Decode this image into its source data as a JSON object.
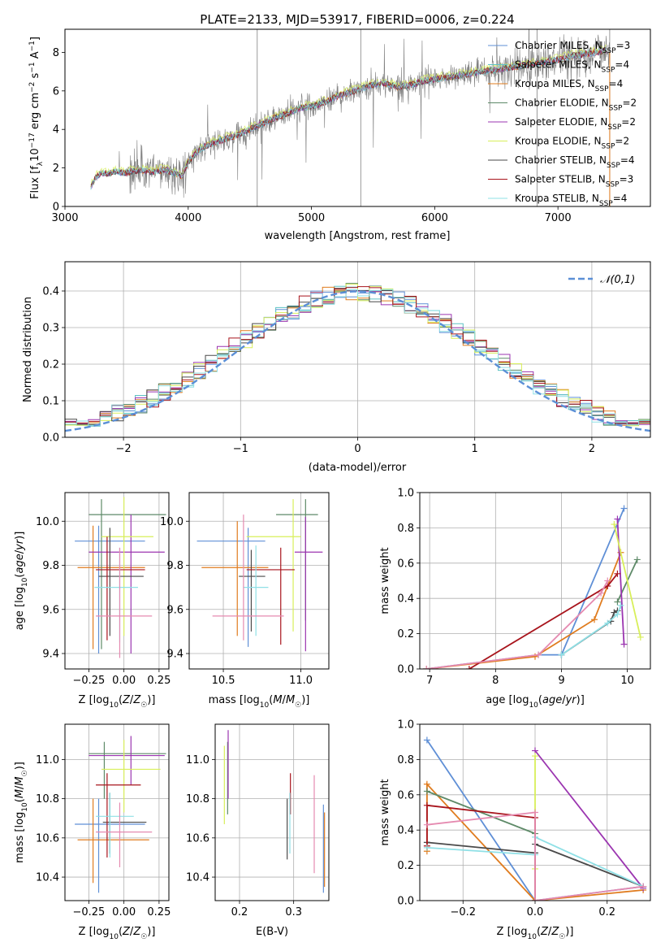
{
  "figure_title": "PLATE=2133, MJD=53917, FIBERID=0006, z=0.224",
  "colors": {
    "Chabrier MILES": "#5f8fd6",
    "Salpeter MILES": "#5ec2c4",
    "Kroupa MILES": "#e07c1f",
    "Chabrier ELODIE": "#5e8a68",
    "Salpeter ELODIE": "#9b35b0",
    "Kroupa ELODIE": "#d8ef5a",
    "Chabrier STELIB": "#4a4a4a",
    "Salpeter STELIB": "#a8141c",
    "Kroupa STELIB": "#8fe0e6",
    "extra": "#e58ab0",
    "data": "#808080"
  },
  "chart_data": [
    {
      "id": "spectrum",
      "type": "line",
      "title": "PLATE=2133, MJD=53917, FIBERID=0006, z=0.224",
      "xlabel": "wavelength [Angstrom, rest frame]",
      "ylabel": "Flux [fλ 10⁻¹⁷ erg cm⁻² s⁻¹ A⁻¹]",
      "xlim": [
        3000,
        7750
      ],
      "ylim": [
        0,
        9.2
      ],
      "xticks": [
        "3000",
        "4000",
        "5000",
        "6000",
        "7000"
      ],
      "yticks": [
        "0",
        "2",
        "4",
        "6",
        "8"
      ],
      "legend_position": "upper-right",
      "legend": [
        "Chabrier MILES, N_SSP=3",
        "Salpeter MILES, N_SSP=4",
        "Kroupa MILES, N_SSP=4",
        "Chabrier ELODIE, N_SSP=2",
        "Salpeter ELODIE, N_SSP=2",
        "Kroupa ELODIE, N_SSP=2",
        "Chabrier STELIB, N_SSP=4",
        "Salpeter STELIB, N_SSP=3",
        "Kroupa STELIB, N_SSP=4"
      ],
      "model_continuum": {
        "x": [
          3210,
          3250,
          3300,
          3350,
          3400,
          3500,
          3600,
          3700,
          3800,
          3900,
          3950,
          4000,
          4100,
          4200,
          4300,
          4400,
          4500,
          4600,
          4700,
          4800,
          4900,
          5000,
          5100,
          5200,
          5300,
          5400,
          5500,
          5600,
          5700,
          5800,
          5900,
          6000,
          6100,
          6200,
          6300,
          6400,
          6500,
          6600,
          6700,
          6800,
          6900,
          7000,
          7100,
          7200,
          7300,
          7400
        ],
        "y": [
          1.0,
          1.5,
          1.75,
          1.7,
          1.8,
          1.75,
          1.9,
          1.8,
          1.9,
          1.7,
          1.6,
          2.3,
          3.0,
          3.3,
          3.5,
          3.7,
          4.0,
          4.3,
          4.6,
          4.8,
          5.1,
          5.2,
          5.4,
          5.7,
          5.9,
          6.1,
          6.3,
          6.4,
          6.2,
          6.3,
          6.5,
          6.6,
          6.7,
          6.8,
          6.9,
          7.0,
          7.1,
          7.2,
          7.3,
          7.4,
          7.5,
          7.6,
          7.8,
          7.9,
          8.0,
          8.1
        ]
      }
    },
    {
      "id": "residuals",
      "type": "line",
      "xlabel": "(data-model)/error",
      "ylabel": "Normed distribution",
      "xlim": [
        -2.5,
        2.5
      ],
      "ylim": [
        0,
        0.48
      ],
      "xticks": [
        "−2",
        "−1",
        "0",
        "1",
        "2"
      ],
      "yticks": [
        "0.0",
        "0.1",
        "0.2",
        "0.3",
        "0.4"
      ],
      "grid": true,
      "legend_position": "upper-right",
      "legend": [
        "𝒩(0,1)"
      ],
      "bin_width": 0.1
    },
    {
      "id": "Z-age",
      "type": "scatter",
      "xlabel": "Z [log10(Z/Z☉)]",
      "ylabel": "age  [log10(age/yr)]",
      "xlim": [
        -0.42,
        0.32
      ],
      "ylim": [
        9.33,
        10.13
      ],
      "xticks": [
        "−0.25",
        "0.00",
        "0.25"
      ],
      "yticks": [
        "9.4",
        "9.6",
        "9.8",
        "10.0"
      ],
      "grid": true,
      "points": [
        {
          "c": "Chabrier MILES",
          "x": -0.18,
          "xe": [
            -0.35,
            0.15
          ],
          "y": 9.91,
          "ye": [
            9.4,
            9.98
          ]
        },
        {
          "c": "Kroupa MILES",
          "x": -0.22,
          "xe": [
            -0.33,
            0.15
          ],
          "y": 9.79,
          "ye": [
            9.42,
            9.98
          ]
        },
        {
          "c": "Chabrier ELODIE",
          "x": -0.16,
          "xe": [
            -0.25,
            0.3
          ],
          "y": 10.03,
          "ye": [
            9.42,
            10.1
          ]
        },
        {
          "c": "Salpeter ELODIE",
          "x": 0.05,
          "xe": [
            -0.25,
            0.29
          ],
          "y": 9.86,
          "ye": [
            9.4,
            10.03
          ]
        },
        {
          "c": "Kroupa ELODIE",
          "x": 0.0,
          "xe": [
            -0.16,
            0.21
          ],
          "y": 9.93,
          "ye": [
            9.48,
            10.11
          ]
        },
        {
          "c": "Chabrier STELIB",
          "x": -0.1,
          "xe": [
            -0.18,
            0.14
          ],
          "y": 9.75,
          "ye": [
            9.48,
            9.97
          ]
        },
        {
          "c": "Salpeter STELIB",
          "x": -0.12,
          "xe": [
            -0.2,
            0.15
          ],
          "y": 9.78,
          "ye": [
            9.46,
            9.93
          ]
        },
        {
          "c": "Kroupa STELIB",
          "x": -0.03,
          "xe": [
            -0.21,
            0.1
          ],
          "y": 9.7,
          "ye": [
            9.45,
            9.88
          ]
        },
        {
          "c": "extra",
          "x": -0.03,
          "xe": [
            -0.2,
            0.2
          ],
          "y": 9.57,
          "ye": [
            9.38,
            9.88
          ]
        }
      ]
    },
    {
      "id": "mass-age",
      "type": "scatter",
      "xlabel": "mass [log10(M/M☉)]",
      "ylabel": "",
      "xlim": [
        10.28,
        11.18
      ],
      "ylim": [
        9.33,
        10.13
      ],
      "xticks": [
        "10.5",
        "11.0"
      ],
      "yticks": [
        "9.4",
        "9.6",
        "9.8",
        "10.0"
      ],
      "grid": true,
      "points": [
        {
          "c": "Chabrier MILES",
          "x": 10.66,
          "xe": [
            10.33,
            10.77
          ],
          "y": 9.91,
          "ye": [
            9.43,
            9.97
          ]
        },
        {
          "c": "Kroupa MILES",
          "x": 10.59,
          "xe": [
            10.36,
            10.79
          ],
          "y": 9.79,
          "ye": [
            9.48,
            10.0
          ]
        },
        {
          "c": "Chabrier ELODIE",
          "x": 11.03,
          "xe": [
            10.84,
            11.11
          ],
          "y": 10.03,
          "ye": [
            9.55,
            10.1
          ]
        },
        {
          "c": "Salpeter ELODIE",
          "x": 11.03,
          "xe": [
            10.96,
            11.14
          ],
          "y": 9.86,
          "ye": [
            9.41,
            10.02
          ]
        },
        {
          "c": "Kroupa ELODIE",
          "x": 10.95,
          "xe": [
            10.65,
            11.0
          ],
          "y": 9.93,
          "ye": [
            9.5,
            10.1
          ]
        },
        {
          "c": "Chabrier STELIB",
          "x": 10.68,
          "xe": [
            10.6,
            10.77
          ],
          "y": 9.75,
          "ye": [
            9.5,
            9.87
          ]
        },
        {
          "c": "Salpeter STELIB",
          "x": 10.87,
          "xe": [
            10.65,
            10.96
          ],
          "y": 9.78,
          "ye": [
            9.44,
            9.88
          ]
        },
        {
          "c": "Kroupa STELIB",
          "x": 10.71,
          "xe": [
            10.63,
            10.79
          ],
          "y": 9.7,
          "ye": [
            9.48,
            9.89
          ]
        },
        {
          "c": "extra",
          "x": 10.63,
          "xe": [
            10.43,
            10.89
          ],
          "y": 9.57,
          "ye": [
            9.46,
            10.03
          ]
        }
      ]
    },
    {
      "id": "age-weight",
      "type": "line",
      "xlabel": "age  [log10(age/yr)]",
      "ylabel": "mass weight",
      "xlim": [
        6.85,
        10.35
      ],
      "ylim": [
        0,
        1.0
      ],
      "xticks": [
        "7",
        "8",
        "9",
        "10"
      ],
      "yticks": [
        "0.0",
        "0.2",
        "0.4",
        "0.6",
        "0.8",
        "1.0"
      ],
      "grid": true,
      "series": [
        {
          "c": "Chabrier MILES",
          "x": [
            6.95,
            8.65,
            9.0,
            9.95
          ],
          "y": [
            0.0,
            0.08,
            0.08,
            0.91
          ]
        },
        {
          "c": "Kroupa MILES",
          "x": [
            6.95,
            8.6,
            9.5,
            9.9
          ],
          "y": [
            0.0,
            0.07,
            0.28,
            0.66
          ]
        },
        {
          "c": "Chabrier ELODIE",
          "x": [
            9.85,
            10.15
          ],
          "y": [
            0.38,
            0.62
          ]
        },
        {
          "c": "Salpeter ELODIE",
          "x": [
            9.85,
            9.95
          ],
          "y": [
            0.85,
            0.14
          ]
        },
        {
          "c": "Kroupa ELODIE",
          "x": [
            9.8,
            10.2
          ],
          "y": [
            0.82,
            0.18
          ]
        },
        {
          "c": "Chabrier STELIB",
          "x": [
            9.0,
            9.75,
            9.8,
            9.85
          ],
          "y": [
            0.08,
            0.27,
            0.32,
            0.33
          ]
        },
        {
          "c": "Salpeter STELIB",
          "x": [
            7.6,
            9.7,
            9.85
          ],
          "y": [
            0.0,
            0.47,
            0.54
          ]
        },
        {
          "c": "Kroupa STELIB",
          "x": [
            9.0,
            9.7,
            9.85,
            9.9
          ],
          "y": [
            0.08,
            0.26,
            0.31,
            0.36
          ]
        },
        {
          "c": "extra",
          "x": [
            6.95,
            8.65,
            9.6,
            9.7
          ],
          "y": [
            0.0,
            0.08,
            0.43,
            0.5
          ]
        }
      ]
    },
    {
      "id": "Z-mass",
      "type": "scatter",
      "xlabel": "Z [log10(Z/Z☉)]",
      "ylabel": "mass [log10(M/M☉)]",
      "xlim": [
        -0.42,
        0.32
      ],
      "ylim": [
        10.28,
        11.18
      ],
      "xticks": [
        "−0.25",
        "0.00",
        "0.25"
      ],
      "yticks": [
        "10.4",
        "10.6",
        "10.8",
        "11.0"
      ],
      "grid": true,
      "points": [
        {
          "c": "Chabrier MILES",
          "x": -0.18,
          "xe": [
            -0.35,
            0.15
          ],
          "y": 10.67,
          "ye": [
            10.32,
            10.8
          ]
        },
        {
          "c": "Kroupa MILES",
          "x": -0.22,
          "xe": [
            -0.33,
            0.18
          ],
          "y": 10.59,
          "ye": [
            10.37,
            10.8
          ]
        },
        {
          "c": "Chabrier ELODIE",
          "x": -0.14,
          "xe": [
            -0.25,
            0.3
          ],
          "y": 11.03,
          "ye": [
            10.8,
            11.09
          ]
        },
        {
          "c": "Salpeter ELODIE",
          "x": 0.05,
          "xe": [
            -0.25,
            0.29
          ],
          "y": 11.02,
          "ye": [
            10.87,
            11.12
          ]
        },
        {
          "c": "Kroupa ELODIE",
          "x": 0.0,
          "xe": [
            -0.16,
            0.26
          ],
          "y": 10.95,
          "ye": [
            10.73,
            11.1
          ]
        },
        {
          "c": "Chabrier STELIB",
          "x": -0.1,
          "xe": [
            -0.15,
            0.16
          ],
          "y": 10.68,
          "ye": [
            10.52,
            10.83
          ]
        },
        {
          "c": "Salpeter STELIB",
          "x": -0.12,
          "xe": [
            -0.2,
            0.12
          ],
          "y": 10.87,
          "ye": [
            10.5,
            10.93
          ]
        },
        {
          "c": "Kroupa STELIB",
          "x": -0.1,
          "xe": [
            -0.2,
            0.07
          ],
          "y": 10.71,
          "ye": [
            10.5,
            10.83
          ]
        },
        {
          "c": "extra",
          "x": -0.03,
          "xe": [
            -0.2,
            0.2
          ],
          "y": 10.63,
          "ye": [
            10.45,
            10.78
          ]
        }
      ]
    },
    {
      "id": "ebv-mass",
      "type": "scatter",
      "xlabel": "E(B-V)",
      "ylabel": "",
      "xlim": [
        0.155,
        0.365
      ],
      "ylim": [
        10.28,
        11.18
      ],
      "xticks": [
        "0.2",
        "0.3"
      ],
      "yticks": [
        "10.4",
        "10.6",
        "10.8",
        "11.0"
      ],
      "grid": true,
      "points": [
        {
          "c": "Chabrier MILES",
          "x": 0.355,
          "y": 10.67,
          "ye": [
            10.32,
            10.77
          ]
        },
        {
          "c": "Kroupa MILES",
          "x": 0.357,
          "y": 10.59,
          "ye": [
            10.35,
            10.73
          ]
        },
        {
          "c": "Chabrier ELODIE",
          "x": 0.178,
          "y": 11.03,
          "ye": [
            10.72,
            11.09
          ]
        },
        {
          "c": "Salpeter ELODIE",
          "x": 0.179,
          "y": 11.02,
          "ye": [
            10.8,
            11.15
          ]
        },
        {
          "c": "Kroupa ELODIE",
          "x": 0.172,
          "y": 10.95,
          "ye": [
            10.67,
            11.07
          ]
        },
        {
          "c": "Chabrier STELIB",
          "x": 0.288,
          "y": 10.68,
          "ye": [
            10.49,
            10.8
          ]
        },
        {
          "c": "Salpeter STELIB",
          "x": 0.294,
          "y": 10.87,
          "ye": [
            10.72,
            10.93
          ]
        },
        {
          "c": "Kroupa STELIB",
          "x": 0.293,
          "y": 10.71,
          "ye": [
            10.52,
            10.83
          ]
        },
        {
          "c": "extra",
          "x": 0.338,
          "y": 10.63,
          "ye": [
            10.42,
            10.92
          ]
        }
      ]
    },
    {
      "id": "Z-weight",
      "type": "line",
      "xlabel": "Z [log10(Z/Z☉)]",
      "ylabel": "mass weight",
      "xlim": [
        -0.32,
        0.32
      ],
      "ylim": [
        0,
        1.0
      ],
      "xticks": [
        "−0.2",
        "0.0",
        "0.2"
      ],
      "yticks": [
        "0.0",
        "0.2",
        "0.4",
        "0.6",
        "0.8",
        "1.0"
      ],
      "grid": true,
      "series": [
        {
          "c": "Chabrier MILES",
          "x": [
            -0.3,
            0.0,
            0.3
          ],
          "y": [
            0.91,
            0.0,
            0.08
          ]
        },
        {
          "c": "Kroupa MILES",
          "x": [
            -0.3,
            -0.3,
            0.0,
            0.3
          ],
          "y": [
            0.28,
            0.66,
            0.0,
            0.06
          ]
        },
        {
          "c": "Chabrier ELODIE",
          "x": [
            -0.3,
            0.0
          ],
          "y": [
            0.62,
            0.38
          ]
        },
        {
          "c": "Salpeter ELODIE",
          "x": [
            0.0,
            0.3
          ],
          "y": [
            0.85,
            0.07
          ]
        },
        {
          "c": "Kroupa ELODIE",
          "x": [
            0.0,
            0.0
          ],
          "y": [
            0.82,
            0.18
          ]
        },
        {
          "c": "Chabrier STELIB",
          "x": [
            -0.3,
            0.0,
            0.0,
            0.3
          ],
          "y": [
            0.33,
            0.27,
            0.32,
            0.08
          ]
        },
        {
          "c": "Salpeter STELIB",
          "x": [
            -0.3,
            -0.3,
            0.0,
            0.0
          ],
          "y": [
            0.31,
            0.54,
            0.47,
            0.0
          ]
        },
        {
          "c": "Kroupa STELIB",
          "x": [
            -0.3,
            0.0,
            0.0,
            0.3
          ],
          "y": [
            0.3,
            0.26,
            0.36,
            0.08
          ]
        },
        {
          "c": "extra",
          "x": [
            -0.3,
            0.0,
            0.0,
            0.3
          ],
          "y": [
            0.43,
            0.5,
            0.0,
            0.08
          ]
        }
      ]
    }
  ]
}
